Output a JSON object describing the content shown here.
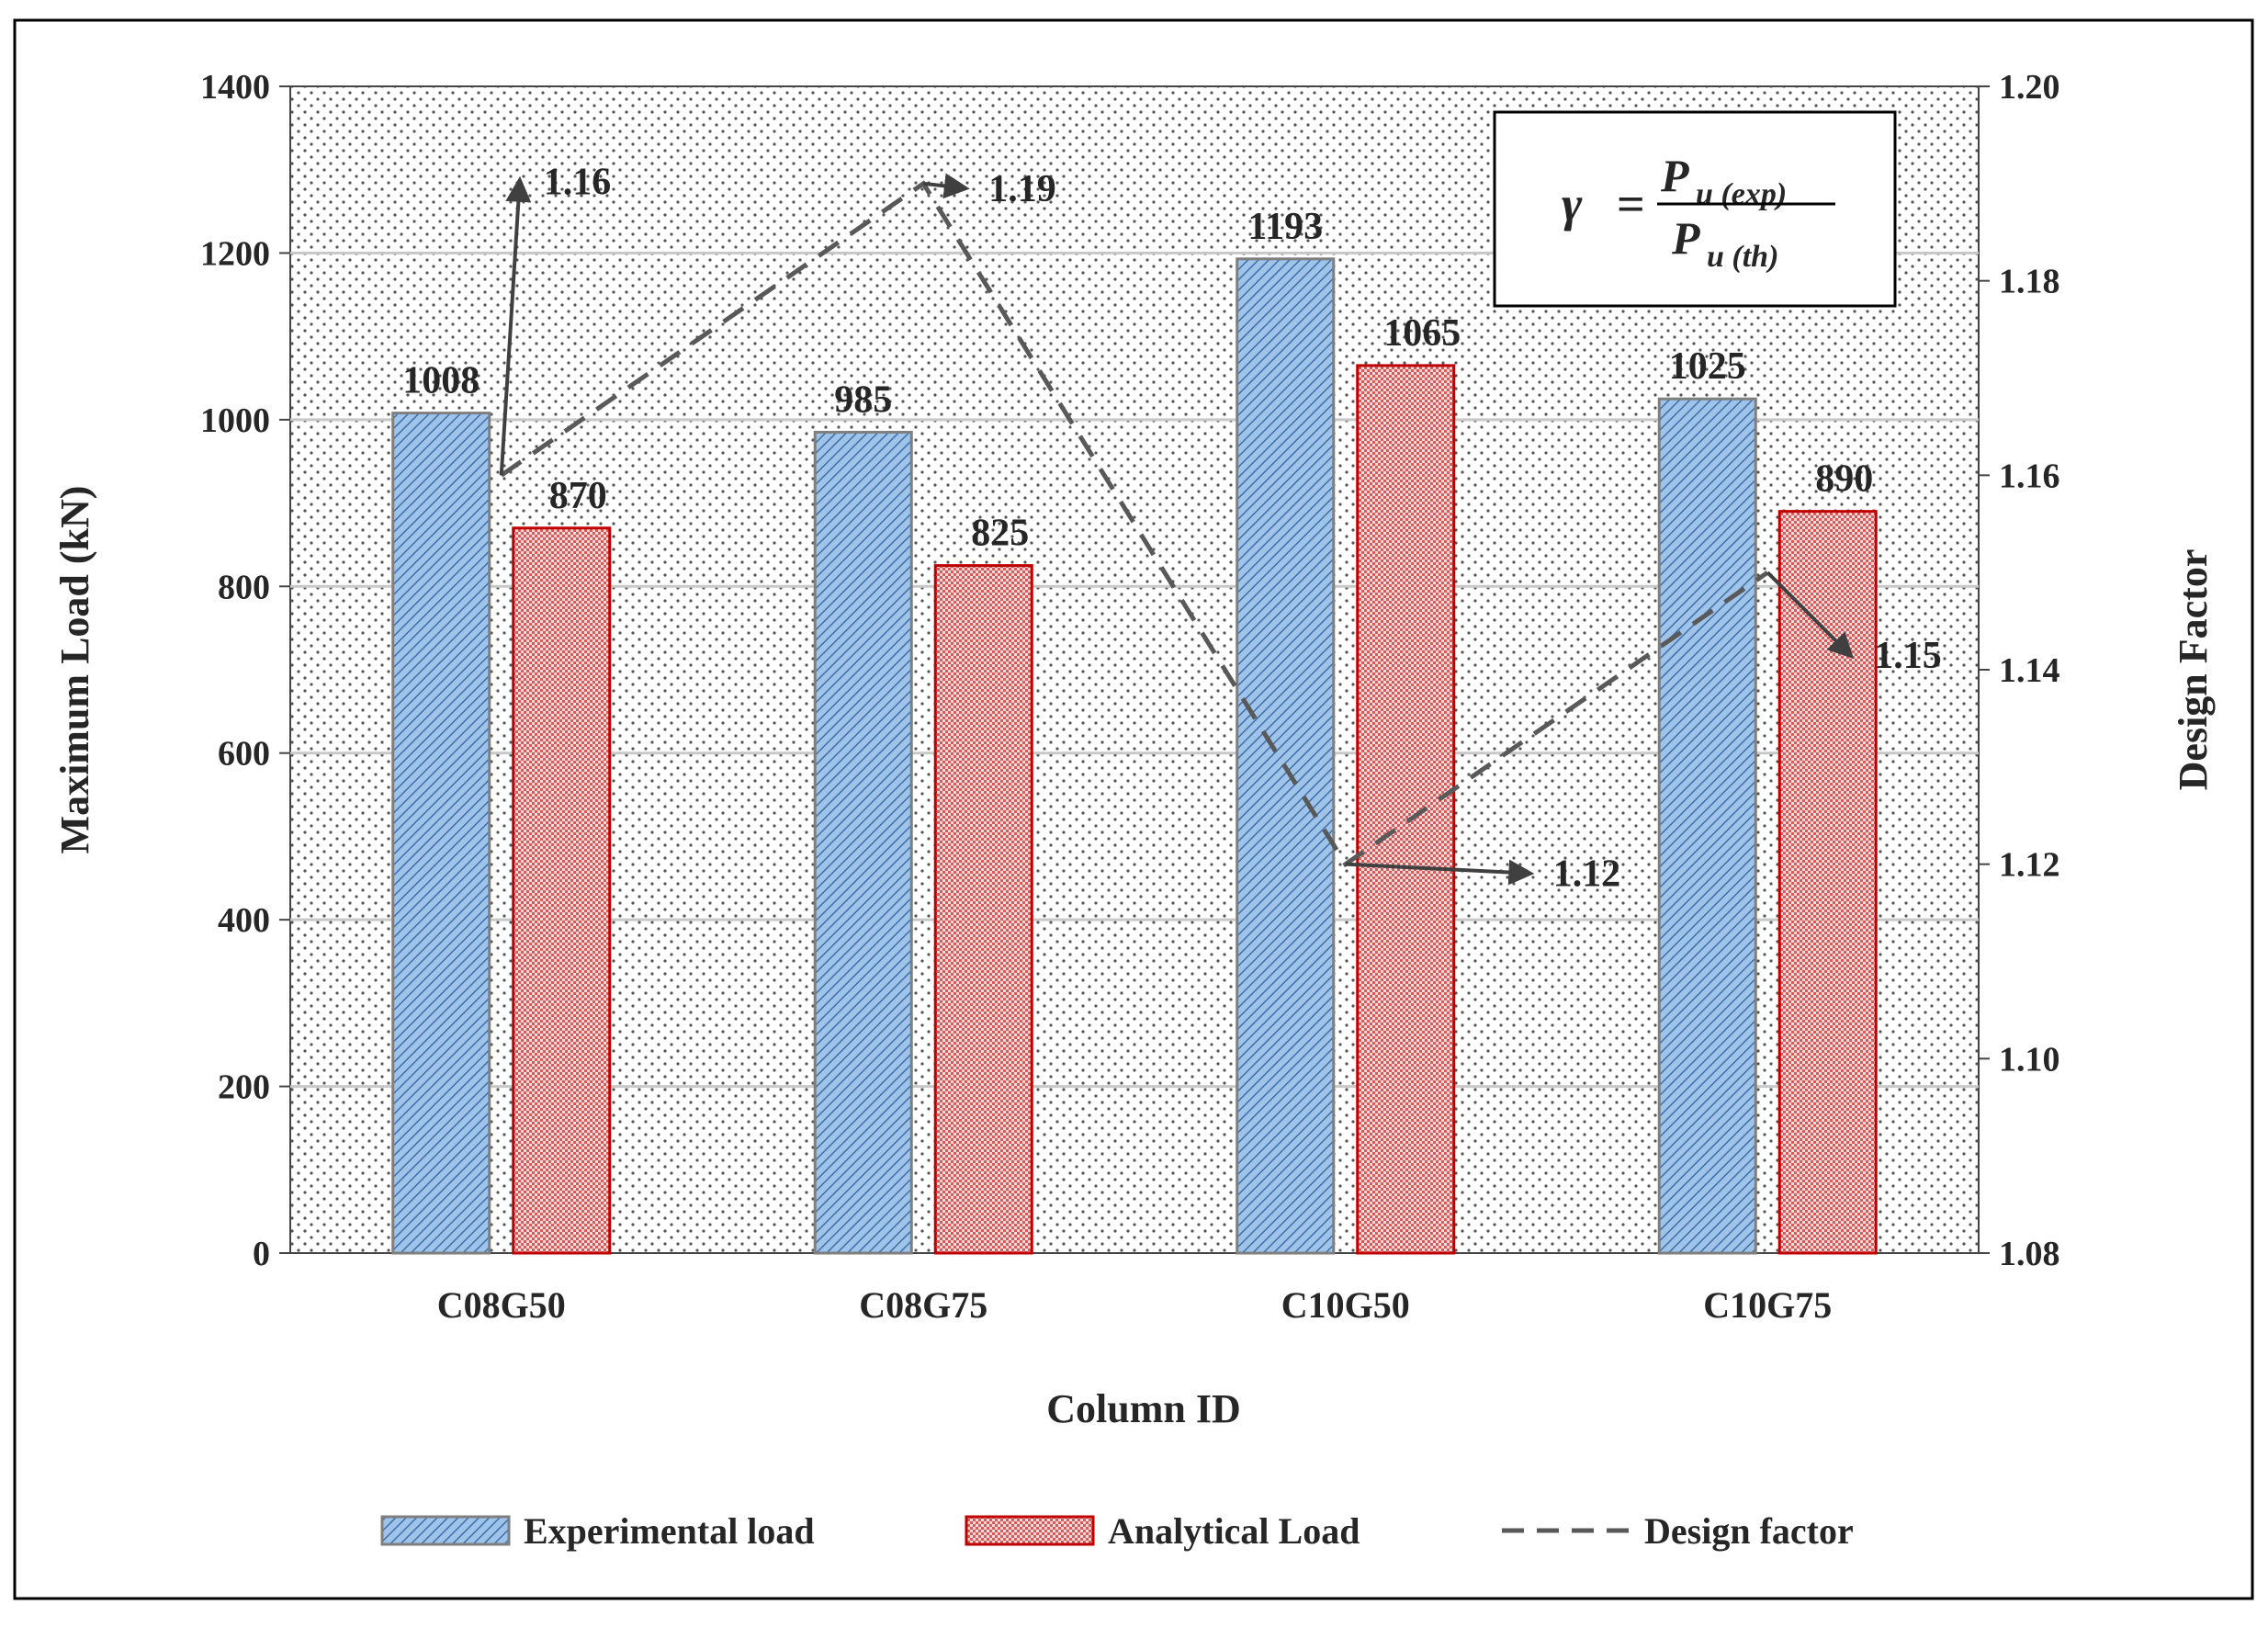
{
  "chart_data": {
    "type": "bar",
    "title": "",
    "xlabel": "Column ID",
    "ylabel": "Maximum Load (kN)",
    "y2label": "Design Factor",
    "categories": [
      "C08G50",
      "C08G75",
      "C10G50",
      "C10G75"
    ],
    "ylim": [
      0,
      1400
    ],
    "yticks": [
      0,
      200,
      400,
      600,
      800,
      1000,
      1200,
      1400
    ],
    "y2lim": [
      1.08,
      1.2
    ],
    "y2ticks": [
      "1.08",
      "1.10",
      "1.12",
      "1.14",
      "1.16",
      "1.18",
      "1.20"
    ],
    "grid": true,
    "legend_position": "bottom",
    "series": [
      {
        "name": "Experimental load",
        "axis": "left",
        "kind": "bar",
        "color": "#8db4e2",
        "edge": "#7f7f7f",
        "values": [
          1008,
          985,
          1193,
          1025
        ]
      },
      {
        "name": "Analytical Load",
        "axis": "right_bar",
        "kind": "bar",
        "color": "#f2c7c7",
        "edge": "#c00000",
        "values": [
          870,
          825,
          1065,
          890
        ]
      },
      {
        "name": "Design factor",
        "axis": "right",
        "kind": "line",
        "style": "dashed",
        "color": "#595959",
        "values": [
          1.16,
          1.19,
          1.12,
          1.15
        ],
        "labels": [
          "1.16",
          "1.19",
          "1.12",
          "1.15"
        ]
      }
    ],
    "formula": {
      "lhs": "γ",
      "eq": "=",
      "num_main": "P",
      "num_sub": "u (exp)",
      "den_main": "P",
      "den_sub": "u (th)"
    }
  }
}
